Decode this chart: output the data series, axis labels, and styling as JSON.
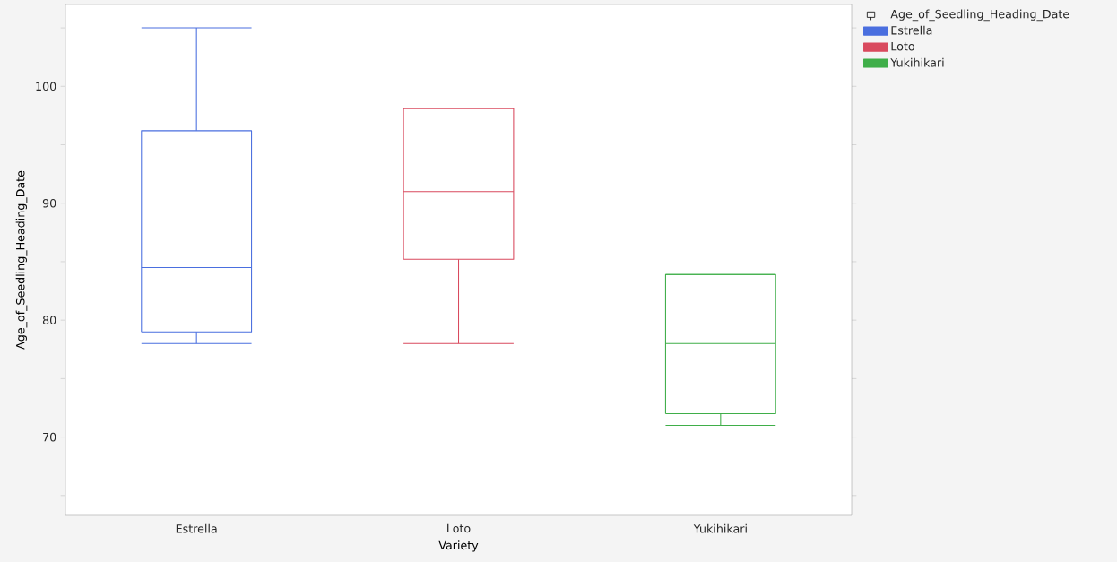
{
  "chart_data": {
    "type": "box",
    "xlabel": "Variety",
    "ylabel": "Age_of_Seedling_Heading_Date",
    "legend_title": "Age_of_Seedling_Heading_Date",
    "legend": "top right",
    "categories": [
      "Estrella",
      "Loto",
      "Yukihikari"
    ],
    "series": [
      {
        "name": "Estrella",
        "color": "#4a6fdf",
        "boxes": [
          {
            "low": 78,
            "q1": 79,
            "median": 84.5,
            "q3": 96.2,
            "high": 105
          },
          null,
          null
        ]
      },
      {
        "name": "Loto",
        "color": "#d94a5e",
        "boxes": [
          null,
          {
            "low": 78,
            "q1": 85.2,
            "median": 91,
            "q3": 98.1,
            "high": 98.1
          },
          null
        ]
      },
      {
        "name": "Yukihikari",
        "color": "#3fae49",
        "boxes": [
          null,
          null,
          {
            "low": 71,
            "q1": 72,
            "median": 78,
            "q3": 83.9,
            "high": 83.9
          }
        ]
      }
    ],
    "ylim": [
      63.3,
      107
    ],
    "yticks": [
      {
        "value": 65,
        "label": null
      },
      70,
      {
        "value": 75,
        "label": null
      },
      80,
      {
        "value": 85,
        "label": null
      },
      90,
      {
        "value": 95,
        "label": null
      },
      100,
      {
        "value": 105,
        "label": null
      }
    ]
  }
}
